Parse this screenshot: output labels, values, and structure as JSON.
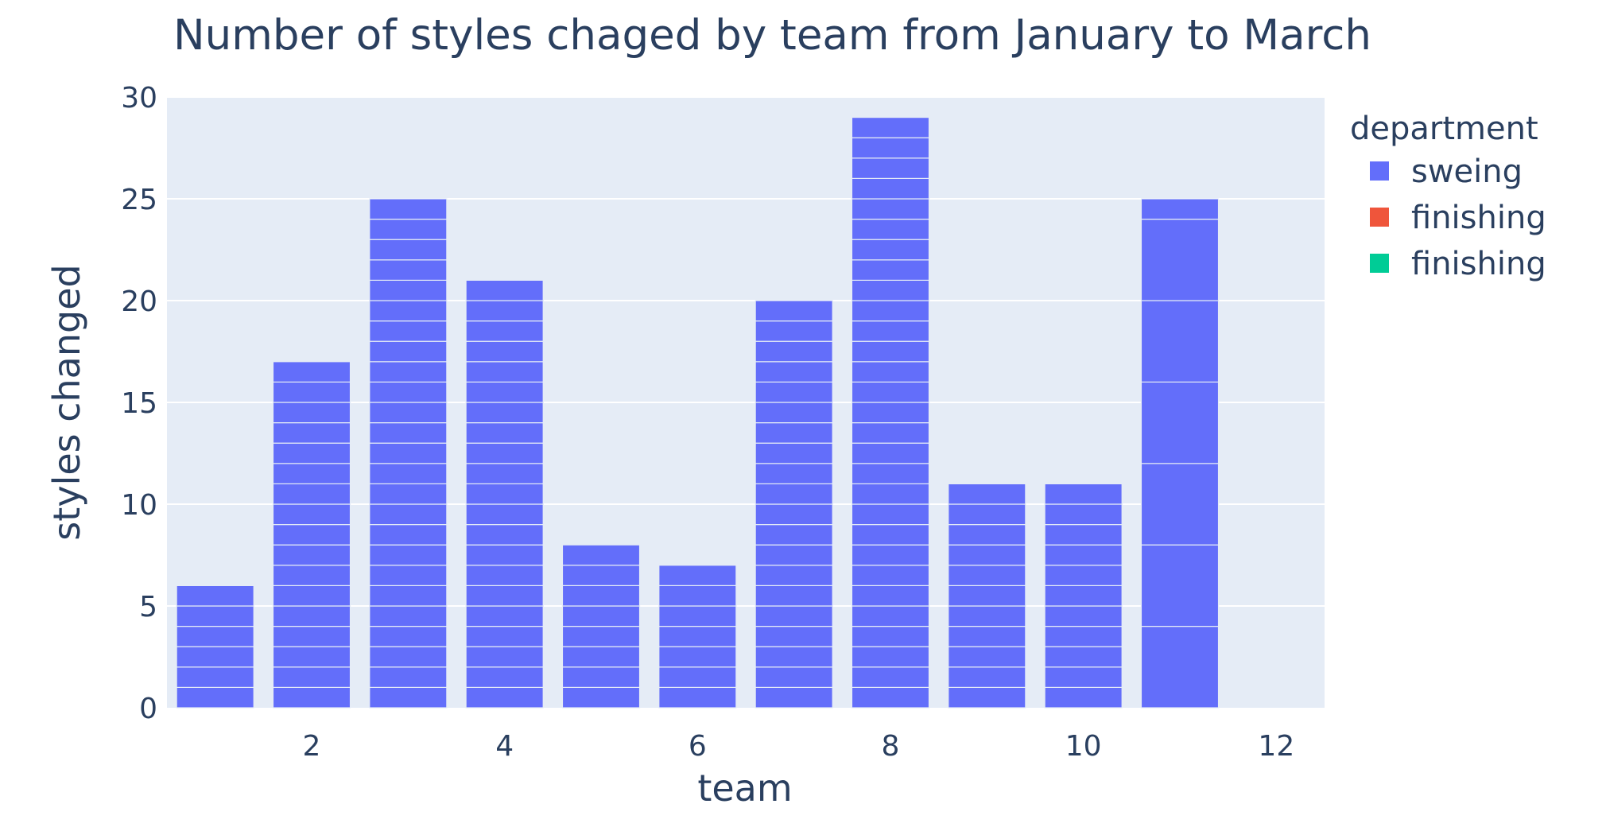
{
  "chart_data": {
    "type": "bar",
    "title": "Number of styles chaged by team from January to March",
    "xlabel": "team",
    "ylabel": "styles changed",
    "xlim": [
      0.5,
      12.5
    ],
    "ylim": [
      0,
      30
    ],
    "x_ticks": [
      2,
      4,
      6,
      8,
      10,
      12
    ],
    "y_ticks": [
      0,
      5,
      10,
      15,
      20,
      25,
      30
    ],
    "grid": true,
    "plot_background": "#e5ecf6",
    "legend": {
      "title": "department",
      "position": "right",
      "entries": [
        {
          "label": "sweing",
          "color": "#636efa"
        },
        {
          "label": "finishing",
          "color": "#ef553b"
        },
        {
          "label": "finishing",
          "color": "#00cc96"
        }
      ]
    },
    "series": [
      {
        "name": "sweing",
        "color": "#636efa",
        "x": [
          1,
          2,
          3,
          4,
          5,
          6,
          7,
          8,
          9,
          10,
          11,
          12
        ],
        "values": [
          6,
          17,
          25,
          21,
          8,
          7,
          20,
          29,
          11,
          11,
          25,
          0
        ],
        "segments": [
          [
            1,
            1,
            1,
            1,
            1,
            1
          ],
          [
            1,
            1,
            1,
            1,
            1,
            1,
            1,
            1,
            1,
            1,
            1,
            1,
            1,
            1,
            1,
            1,
            1
          ],
          [
            1,
            1,
            1,
            1,
            1,
            1,
            1,
            1,
            1,
            1,
            1,
            1,
            1,
            1,
            1,
            1,
            1,
            1,
            1,
            1,
            1,
            1,
            1,
            1,
            1
          ],
          [
            1,
            1,
            1,
            1,
            1,
            1,
            1,
            1,
            1,
            1,
            1,
            1,
            1,
            1,
            1,
            1,
            1,
            1,
            1,
            1,
            1
          ],
          [
            1,
            1,
            1,
            1,
            1,
            1,
            1,
            1
          ],
          [
            1,
            1,
            1,
            1,
            1,
            1,
            1
          ],
          [
            1,
            1,
            1,
            1,
            1,
            1,
            1,
            1,
            1,
            1,
            1,
            1,
            1,
            1,
            1,
            1,
            1,
            1,
            1,
            1
          ],
          [
            1,
            1,
            1,
            1,
            1,
            1,
            1,
            1,
            1,
            1,
            1,
            1,
            1,
            1,
            1,
            1,
            1,
            1,
            1,
            1,
            1,
            1,
            1,
            1,
            1,
            1,
            1,
            1,
            1
          ],
          [
            1,
            1,
            1,
            1,
            1,
            1,
            1,
            1,
            1,
            1,
            1
          ],
          [
            1,
            1,
            1,
            1,
            1,
            1,
            1,
            1,
            1,
            1,
            1
          ],
          [
            4,
            4,
            4,
            4,
            4,
            4,
            1
          ],
          []
        ]
      }
    ]
  }
}
